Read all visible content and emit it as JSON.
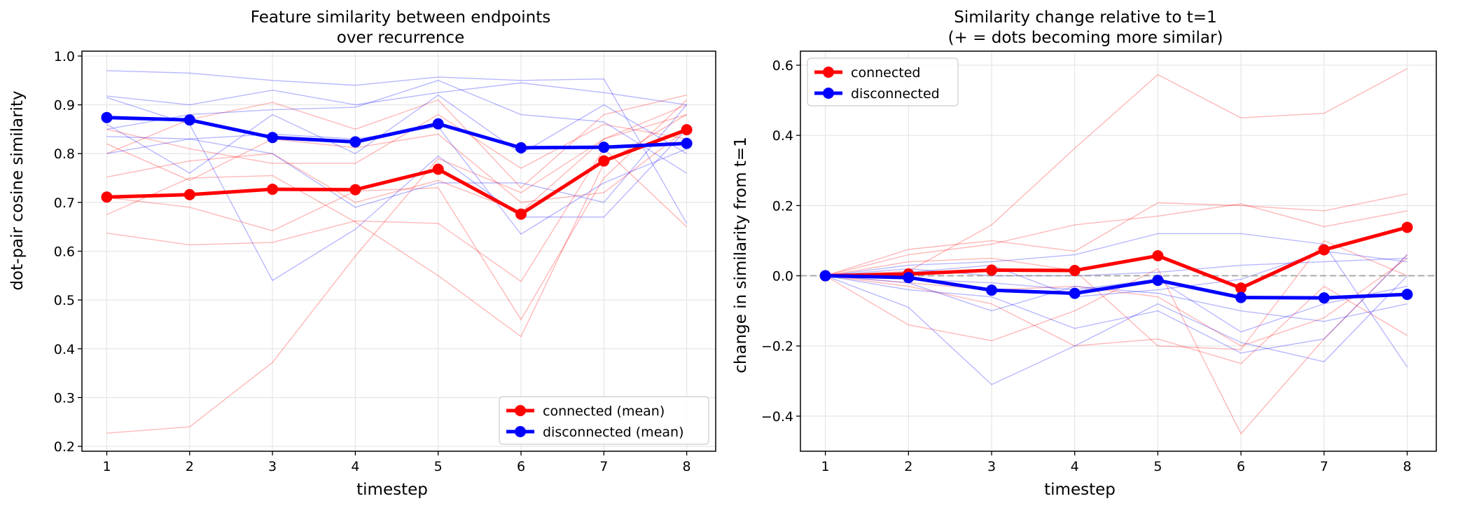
{
  "chart_data": [
    {
      "type": "line",
      "title": "Feature similarity between endpoints\nover recurrence",
      "title_lines": [
        "Feature similarity between endpoints",
        "over recurrence"
      ],
      "xlabel": "timestep",
      "ylabel": "dot-pair cosine similarity",
      "x": [
        1,
        2,
        3,
        4,
        5,
        6,
        7,
        8
      ],
      "xlim": [
        0.7,
        8.35
      ],
      "ylim": [
        0.19,
        1.01
      ],
      "xticks": [
        "1",
        "2",
        "3",
        "4",
        "5",
        "6",
        "7",
        "8"
      ],
      "yticks": [
        "0.2",
        "0.3",
        "0.4",
        "0.5",
        "0.6",
        "0.7",
        "0.8",
        "0.9",
        "1.0"
      ],
      "ytick_values": [
        0.2,
        0.3,
        0.4,
        0.5,
        0.6,
        0.7,
        0.8,
        0.9,
        1.0
      ],
      "grid": true,
      "legend": {
        "placement": "lower-right",
        "entries": [
          {
            "label": "connected (mean)",
            "color": "#ff0000"
          },
          {
            "label": "disconnected (mean)",
            "color": "#0000ff"
          }
        ]
      },
      "series": [
        {
          "name": "connected (mean)",
          "color": "#ff0000",
          "values": [
            0.711,
            0.716,
            0.727,
            0.726,
            0.768,
            0.676,
            0.785,
            0.849
          ]
        },
        {
          "name": "disconnected (mean)",
          "color": "#0000ff",
          "values": [
            0.874,
            0.869,
            0.833,
            0.824,
            0.861,
            0.812,
            0.813,
            0.821
          ]
        }
      ],
      "background_series": {
        "connected": {
          "color": "#ff0000",
          "lines": [
            [
              0.227,
              0.24,
              0.372,
              0.59,
              0.79,
              0.72,
              0.83,
              0.9
            ],
            [
              0.637,
              0.613,
              0.618,
              0.662,
              0.657,
              0.538,
              0.81,
              0.65
            ],
            [
              0.675,
              0.75,
              0.755,
              0.66,
              0.55,
              0.425,
              0.78,
              0.88
            ],
            [
              0.71,
              0.69,
              0.642,
              0.723,
              0.73,
              0.46,
              0.75,
              0.91
            ],
            [
              0.752,
              0.785,
              0.8,
              0.7,
              0.745,
              0.68,
              0.83,
              0.88
            ],
            [
              0.8,
              0.87,
              0.905,
              0.85,
              0.91,
              0.73,
              0.88,
              0.92
            ],
            [
              0.82,
              0.745,
              0.83,
              0.812,
              0.84,
              0.7,
              0.72,
              0.85
            ],
            [
              0.85,
              0.81,
              0.78,
              0.78,
              0.88,
              0.77,
              0.86,
              0.83
            ]
          ]
        },
        "disconnected": {
          "color": "#0000ff",
          "lines": [
            [
              0.97,
              0.965,
              0.95,
              0.94,
              0.957,
              0.95,
              0.953,
              0.657
            ],
            [
              0.918,
              0.9,
              0.93,
              0.9,
              0.925,
              0.945,
              0.925,
              0.9
            ],
            [
              0.915,
              0.86,
              0.54,
              0.645,
              0.795,
              0.67,
              0.67,
              0.85
            ],
            [
              0.85,
              0.88,
              0.89,
              0.895,
              0.95,
              0.88,
              0.865,
              0.76
            ],
            [
              0.835,
              0.83,
              0.84,
              0.83,
              0.855,
              0.635,
              0.74,
              0.81
            ],
            [
              0.86,
              0.76,
              0.88,
              0.8,
              0.92,
              0.8,
              0.9,
              0.8
            ],
            [
              0.8,
              0.83,
              0.8,
              0.69,
              0.74,
              0.74,
              0.7,
              0.9
            ]
          ]
        }
      }
    },
    {
      "type": "line",
      "title": "Similarity change relative to t=1\n(+ = dots becoming more similar)",
      "title_lines": [
        "Similarity change relative to t=1",
        "(+ = dots becoming more similar)"
      ],
      "xlabel": "timestep",
      "ylabel": "change in similarity from t=1",
      "x": [
        1,
        2,
        3,
        4,
        5,
        6,
        7,
        8
      ],
      "xlim": [
        0.7,
        8.35
      ],
      "ylim": [
        -0.5,
        0.64
      ],
      "xticks": [
        "1",
        "2",
        "3",
        "4",
        "5",
        "6",
        "7",
        "8"
      ],
      "yticks": [
        "−0.4",
        "−0.2",
        "0.0",
        "0.2",
        "0.4",
        "0.6"
      ],
      "ytick_values": [
        -0.4,
        -0.2,
        0.0,
        0.2,
        0.4,
        0.6
      ],
      "grid": true,
      "reference_line": {
        "y": 0.0,
        "style": "dashed",
        "color": "#999999"
      },
      "legend": {
        "placement": "upper-left",
        "entries": [
          {
            "label": "connected",
            "color": "#ff0000"
          },
          {
            "label": "disconnected",
            "color": "#0000ff"
          }
        ]
      },
      "series": [
        {
          "name": "connected",
          "color": "#ff0000",
          "values": [
            0.0,
            0.005,
            0.016,
            0.015,
            0.057,
            -0.035,
            0.074,
            0.138
          ]
        },
        {
          "name": "disconnected",
          "color": "#0000ff",
          "values": [
            0.0,
            -0.005,
            -0.041,
            -0.05,
            -0.013,
            -0.062,
            -0.063,
            -0.053
          ]
        }
      ],
      "background_series": {
        "connected": {
          "color": "#ff0000",
          "lines": [
            [
              0.0,
              0.013,
              0.145,
              0.363,
              0.573,
              0.45,
              0.463,
              0.59
            ],
            [
              0.0,
              -0.14,
              -0.185,
              -0.1,
              0.02,
              -0.45,
              -0.18,
              0.06
            ],
            [
              0.0,
              0.075,
              0.1,
              0.07,
              0.208,
              0.2,
              0.185,
              0.233
            ],
            [
              0.0,
              0.06,
              0.09,
              0.145,
              0.17,
              0.205,
              0.14,
              0.185
            ],
            [
              0.0,
              -0.03,
              -0.08,
              -0.2,
              -0.18,
              -0.25,
              -0.03,
              -0.17
            ],
            [
              0.0,
              0.04,
              0.05,
              0.015,
              -0.2,
              -0.21,
              0.1,
              0.0
            ],
            [
              0.0,
              -0.02,
              -0.04,
              -0.03,
              -0.06,
              -0.2,
              -0.12,
              0.05
            ]
          ]
        },
        "disconnected": {
          "color": "#0000ff",
          "lines": [
            [
              0.0,
              -0.09,
              -0.31,
              -0.2,
              -0.08,
              -0.19,
              -0.245,
              0.0
            ],
            [
              0.0,
              0.03,
              0.04,
              0.06,
              0.12,
              0.12,
              0.09,
              -0.26
            ],
            [
              0.0,
              -0.04,
              -0.06,
              -0.15,
              -0.1,
              -0.22,
              -0.18,
              0.06
            ],
            [
              0.0,
              0.02,
              0.0,
              0.0,
              0.01,
              0.03,
              0.04,
              0.05
            ],
            [
              0.0,
              -0.02,
              -0.1,
              -0.03,
              -0.05,
              -0.1,
              -0.13,
              -0.08
            ],
            [
              0.0,
              0.01,
              0.03,
              -0.06,
              -0.04,
              -0.01,
              0.07,
              0.04
            ],
            [
              0.0,
              -0.01,
              -0.02,
              -0.04,
              -0.01,
              -0.16,
              -0.08,
              -0.03
            ]
          ]
        }
      }
    }
  ]
}
